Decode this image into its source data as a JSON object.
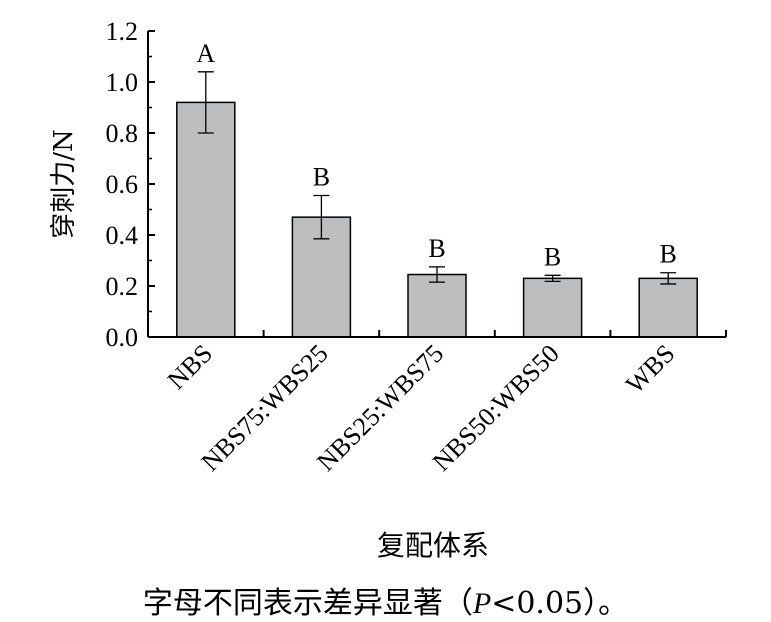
{
  "chart_data": {
    "type": "bar",
    "title": "",
    "xlabel": "复配体系",
    "ylabel": "穿刺力/N",
    "categories": [
      "NBS",
      "NBS75:WBS25",
      "NBS25:WBS75",
      "NBS50:WBS50",
      "WBS"
    ],
    "values": [
      0.92,
      0.47,
      0.245,
      0.23,
      0.23
    ],
    "errors": [
      0.12,
      0.085,
      0.03,
      0.012,
      0.022
    ],
    "significance_letters": [
      "A",
      "B",
      "B",
      "B",
      "B"
    ],
    "ylim": [
      0,
      1.2
    ],
    "yticks": [
      "0.0",
      "0.2",
      "0.4",
      "0.6",
      "0.8",
      "1.0",
      "1.2"
    ],
    "bar_color": "#bcbec0",
    "grid": false,
    "legend": "none"
  },
  "footnote": {
    "text_before": "字母不同表示差异显著（",
    "p_symbol": "P",
    "text_after": "<0.05）。"
  }
}
